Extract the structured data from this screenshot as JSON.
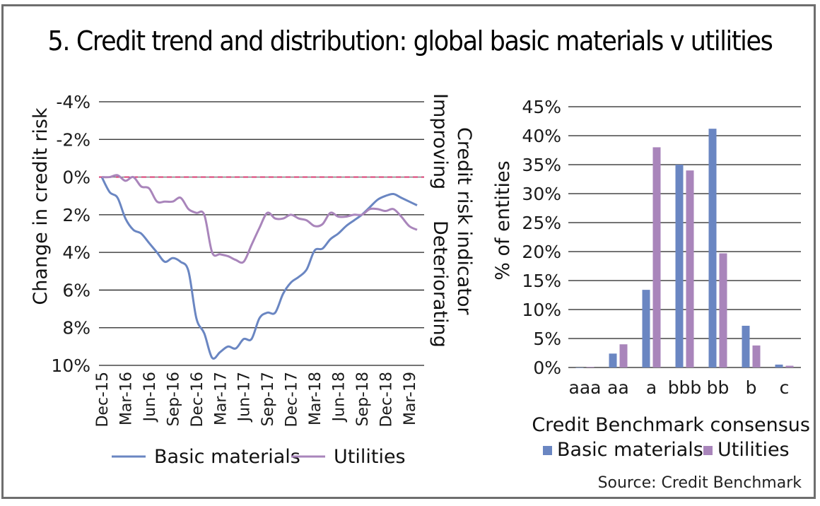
{
  "title": "5. Credit trend and distribution: global basic materials v utilities",
  "source": "Source: Credit Benchmark",
  "colors": {
    "basic_materials": "#6a86c2",
    "utilities": "#a985bb",
    "zero_line": "#d8356e",
    "grid": "#222222"
  },
  "chart_data": [
    {
      "type": "line",
      "title": "",
      "ylabel": "Change in credit risk",
      "secondary_label": "Credit risk indicator",
      "secondary_top": "Improving",
      "secondary_bottom": "Deteriorating",
      "y_inverted": true,
      "ylim": [
        -4,
        10
      ],
      "yticks": [
        -4,
        -2,
        0,
        2,
        4,
        6,
        8,
        10
      ],
      "ytick_labels": [
        "-4%",
        "-2%",
        "0%",
        "2%",
        "4%",
        "6%",
        "8%",
        "10%"
      ],
      "xtick_labels": [
        "Dec-15",
        "Mar-16",
        "Jun-16",
        "Sep-16",
        "Dec-16",
        "Mar-17",
        "Jun-17",
        "Sep-17",
        "Dec-17",
        "Mar-18",
        "Jun-18",
        "Sep-18",
        "Dec-18",
        "Mar-19"
      ],
      "x_months_from_dec15": [
        0,
        1,
        2,
        3,
        4,
        5,
        6,
        7,
        8,
        9,
        10,
        11,
        12,
        13,
        14,
        15,
        16,
        17,
        18,
        19,
        20,
        21,
        22,
        23,
        24,
        25,
        26,
        27,
        28,
        29,
        30,
        31,
        32,
        33,
        34,
        35,
        36,
        37,
        38,
        39,
        40
      ],
      "reference_line": 0,
      "series": [
        {
          "name": "Basic materials",
          "values": [
            0.0,
            0.8,
            1.1,
            2.2,
            2.8,
            3.0,
            3.5,
            4.0,
            4.5,
            4.3,
            4.5,
            5.0,
            7.5,
            8.3,
            9.6,
            9.3,
            9.0,
            9.1,
            8.6,
            8.6,
            7.5,
            7.2,
            7.2,
            6.2,
            5.6,
            5.3,
            4.9,
            3.9,
            3.8,
            3.3,
            3.0,
            2.6,
            2.3,
            2.0,
            1.6,
            1.2,
            1.0,
            0.9,
            1.1,
            1.3,
            1.5
          ],
          "color": "#6a86c2"
        },
        {
          "name": "Utilities",
          "values": [
            0.0,
            0.0,
            -0.1,
            0.2,
            0.0,
            0.5,
            0.6,
            1.3,
            1.3,
            1.3,
            1.1,
            1.7,
            1.9,
            2.0,
            4.0,
            4.1,
            4.2,
            4.4,
            4.5,
            3.6,
            2.7,
            1.9,
            2.2,
            2.2,
            2.0,
            2.2,
            2.3,
            2.6,
            2.5,
            1.9,
            2.1,
            2.1,
            2.0,
            2.0,
            1.7,
            1.7,
            1.8,
            1.7,
            2.1,
            2.6,
            2.8
          ],
          "color": "#a985bb"
        }
      ],
      "legend": [
        "Basic materials",
        "Utilities"
      ],
      "legend_position": "bottom",
      "grid": true
    },
    {
      "type": "bar",
      "title": "",
      "xlabel": "Credit Benchmark consensus",
      "ylabel": "% of entities",
      "ylim": [
        0,
        45
      ],
      "yticks": [
        0,
        5,
        10,
        15,
        20,
        25,
        30,
        35,
        40,
        45
      ],
      "ytick_labels": [
        "0%",
        "5%",
        "10%",
        "15%",
        "20%",
        "25%",
        "30%",
        "35%",
        "40%",
        "45%"
      ],
      "categories": [
        "aaa",
        "aa",
        "a",
        "bbb",
        "bb",
        "b",
        "c"
      ],
      "series": [
        {
          "name": "Basic materials",
          "values": [
            0.0,
            2.4,
            13.4,
            35.0,
            41.2,
            7.2,
            0.5
          ],
          "color": "#6a86c2"
        },
        {
          "name": "Utilities",
          "values": [
            0.1,
            4.0,
            38.0,
            34.0,
            19.7,
            3.8,
            0.3
          ],
          "color": "#a985bb"
        }
      ],
      "legend": [
        "Basic materials",
        "Utilities"
      ],
      "legend_position": "bottom",
      "grid": true
    }
  ]
}
